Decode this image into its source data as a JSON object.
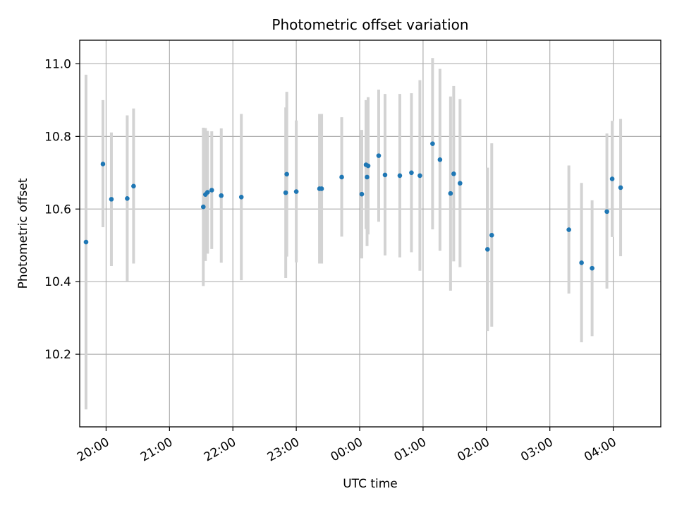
{
  "chart_data": {
    "type": "scatter",
    "title": "Photometric offset variation",
    "xlabel": "UTC time",
    "ylabel": "Photometric offset",
    "xlim": [
      "19:35",
      "04:45"
    ],
    "ylim": [
      10.0,
      11.065
    ],
    "grid": true,
    "x_ticks": [
      "20:00",
      "21:00",
      "22:00",
      "23:00",
      "00:00",
      "01:00",
      "02:00",
      "03:00",
      "04:00"
    ],
    "y_ticks": [
      "10.2",
      "10.4",
      "10.6",
      "10.8",
      "11.0"
    ],
    "marker_color": "#1f77b4",
    "errorbar_color": "#d3d3d3",
    "points": [
      {
        "t": "19:41",
        "y": 10.509,
        "lo": 10.048,
        "hi": 10.97
      },
      {
        "t": "19:57",
        "y": 10.724,
        "lo": 10.55,
        "hi": 10.9
      },
      {
        "t": "20:05",
        "y": 10.627,
        "lo": 10.443,
        "hi": 10.811
      },
      {
        "t": "20:20",
        "y": 10.629,
        "lo": 10.4,
        "hi": 10.858
      },
      {
        "t": "20:26",
        "y": 10.663,
        "lo": 10.45,
        "hi": 10.877
      },
      {
        "t": "21:32",
        "y": 10.606,
        "lo": 10.388,
        "hi": 10.824
      },
      {
        "t": "21:34",
        "y": 10.64,
        "lo": 10.457,
        "hi": 10.823
      },
      {
        "t": "21:36",
        "y": 10.646,
        "lo": 10.477,
        "hi": 10.815
      },
      {
        "t": "21:40",
        "y": 10.652,
        "lo": 10.49,
        "hi": 10.814
      },
      {
        "t": "21:49",
        "y": 10.637,
        "lo": 10.452,
        "hi": 10.822
      },
      {
        "t": "22:08",
        "y": 10.633,
        "lo": 10.404,
        "hi": 10.862
      },
      {
        "t": "22:50",
        "y": 10.645,
        "lo": 10.41,
        "hi": 10.88
      },
      {
        "t": "22:51",
        "y": 10.696,
        "lo": 10.469,
        "hi": 10.923
      },
      {
        "t": "23:00",
        "y": 10.648,
        "lo": 10.453,
        "hi": 10.844
      },
      {
        "t": "23:22",
        "y": 10.656,
        "lo": 10.45,
        "hi": 10.862
      },
      {
        "t": "23:24",
        "y": 10.656,
        "lo": 10.45,
        "hi": 10.862
      },
      {
        "t": "23:43",
        "y": 10.688,
        "lo": 10.524,
        "hi": 10.853
      },
      {
        "t": "00:02",
        "y": 10.641,
        "lo": 10.464,
        "hi": 10.818
      },
      {
        "t": "00:06",
        "y": 10.722,
        "lo": 10.545,
        "hi": 10.9
      },
      {
        "t": "00:07",
        "y": 10.688,
        "lo": 10.498,
        "hi": 10.877
      },
      {
        "t": "00:08",
        "y": 10.719,
        "lo": 10.53,
        "hi": 10.908
      },
      {
        "t": "00:18",
        "y": 10.747,
        "lo": 10.565,
        "hi": 10.929
      },
      {
        "t": "00:24",
        "y": 10.694,
        "lo": 10.472,
        "hi": 10.917
      },
      {
        "t": "00:38",
        "y": 10.692,
        "lo": 10.467,
        "hi": 10.917
      },
      {
        "t": "00:49",
        "y": 10.7,
        "lo": 10.481,
        "hi": 10.919
      },
      {
        "t": "00:57",
        "y": 10.692,
        "lo": 10.43,
        "hi": 10.955
      },
      {
        "t": "01:09",
        "y": 10.78,
        "lo": 10.544,
        "hi": 11.016
      },
      {
        "t": "01:16",
        "y": 10.736,
        "lo": 10.485,
        "hi": 10.986
      },
      {
        "t": "01:26",
        "y": 10.643,
        "lo": 10.375,
        "hi": 10.91
      },
      {
        "t": "01:29",
        "y": 10.697,
        "lo": 10.456,
        "hi": 10.939
      },
      {
        "t": "01:35",
        "y": 10.671,
        "lo": 10.44,
        "hi": 10.903
      },
      {
        "t": "02:01",
        "y": 10.489,
        "lo": 10.264,
        "hi": 10.714
      },
      {
        "t": "02:05",
        "y": 10.528,
        "lo": 10.276,
        "hi": 10.781
      },
      {
        "t": "03:18",
        "y": 10.543,
        "lo": 10.367,
        "hi": 10.72
      },
      {
        "t": "03:30",
        "y": 10.452,
        "lo": 10.233,
        "hi": 10.672
      },
      {
        "t": "03:40",
        "y": 10.437,
        "lo": 10.25,
        "hi": 10.624
      },
      {
        "t": "03:54",
        "y": 10.593,
        "lo": 10.381,
        "hi": 10.808
      },
      {
        "t": "03:59",
        "y": 10.683,
        "lo": 10.523,
        "hi": 10.843
      },
      {
        "t": "04:07",
        "y": 10.659,
        "lo": 10.47,
        "hi": 10.848
      }
    ]
  }
}
